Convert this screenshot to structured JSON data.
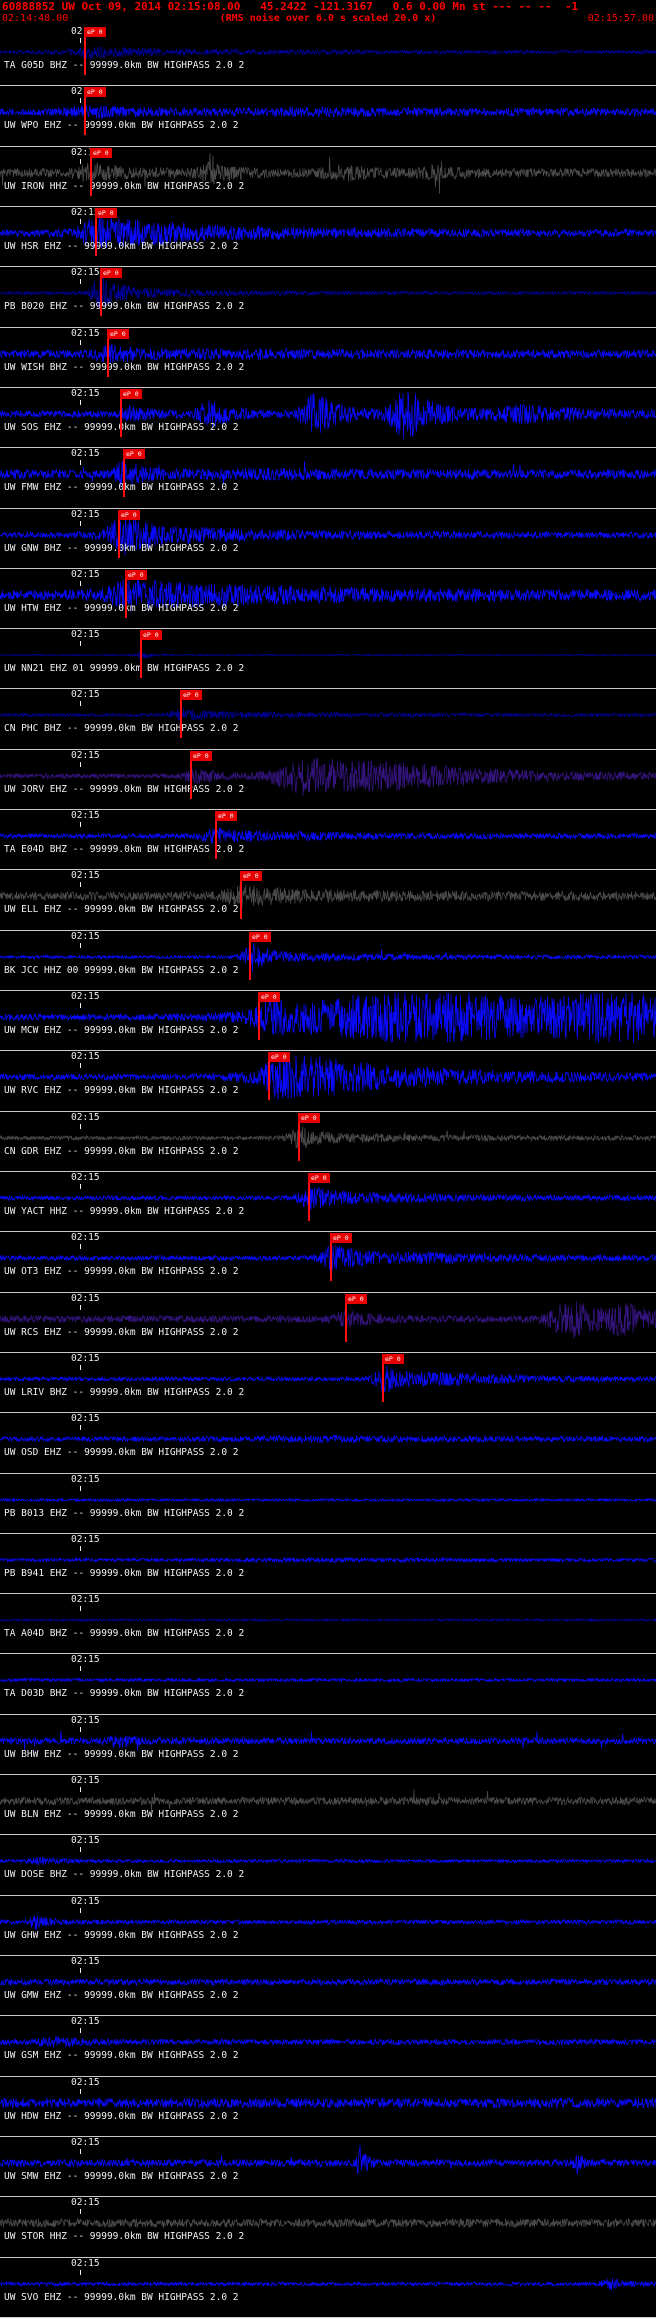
{
  "header": {
    "event_line": "60888852 UW Oct 09, 2014 02:15:08.00   45.2422 -121.3167   0.6 0.00 Mn st --- -- --  -1",
    "window_start": "02:14:48.00",
    "rms_note": "(RMS noise over 6.0 s scaled 20.0 x)",
    "window_end": "02:15:57.00"
  },
  "time_label": "02:15",
  "colors": {
    "background": "#000000",
    "header_text": "#ff0000",
    "label_text": "#f2f2f2",
    "separator": "#c9c9c9",
    "pick_red": "#ff0f0f",
    "blue": "#0a0aff",
    "navy": "#000096",
    "indigo": "#34147d",
    "dark": "#4b4b4b"
  },
  "traces": [
    {
      "label": "TA G05D BHZ -- 99999.0km BW HIGHPASS 2.0 2",
      "color": "navy",
      "noise": 1.8,
      "blobs": [
        {
          "p": 0.135,
          "w": 0.04,
          "a": 5
        },
        {
          "p": 0.22,
          "w": 0.2,
          "a": 2
        }
      ],
      "pick": {
        "pos": 0.128,
        "label": "eP 0"
      }
    },
    {
      "label": "UW WPO EHZ -- 99999.0km BW HIGHPASS 2.0 2",
      "color": "blue",
      "noise": 3.5,
      "blobs": [
        {
          "p": 0.14,
          "w": 0.07,
          "a": 4
        },
        {
          "p": 0.5,
          "w": 0.3,
          "a": 1.5
        }
      ],
      "pick": {
        "pos": 0.128,
        "label": "eP 0"
      }
    },
    {
      "label": "UW IRON HHZ -- 99999.0km BW HIGHPASS 2.0 2",
      "color": "dark",
      "noise": 4.5,
      "spikes": {
        "rate": 0.012,
        "amp": 2.8
      },
      "blobs": [
        {
          "p": 0.14,
          "w": 0.05,
          "a": 6
        },
        {
          "p": 0.32,
          "w": 0.03,
          "a": 9
        },
        {
          "p": 0.52,
          "w": 0.05,
          "a": 5
        },
        {
          "p": 0.66,
          "w": 0.03,
          "a": 4
        }
      ],
      "pick": {
        "pos": 0.137,
        "label": "eP 0"
      }
    },
    {
      "label": "UW HSR EHZ -- 99999.0km BW HIGHPASS 2.0 2",
      "color": "blue",
      "noise": 3.5,
      "blobs": [
        {
          "p": 0.15,
          "w": 0.05,
          "a": 13
        },
        {
          "p": 0.25,
          "w": 0.2,
          "a": 7
        }
      ],
      "pick": {
        "pos": 0.145,
        "label": "eP 0"
      }
    },
    {
      "label": "PB B020 EHZ -- 99999.0km BW HIGHPASS 2.0 2",
      "color": "navy",
      "noise": 1.4,
      "blobs": [
        {
          "p": 0.155,
          "w": 0.03,
          "a": 16
        },
        {
          "p": 0.25,
          "w": 0.2,
          "a": 2.5
        }
      ],
      "pick": {
        "pos": 0.152,
        "label": "eP 0"
      }
    },
    {
      "label": "UW WISH BHZ -- 99999.0km BW HIGHPASS 2.0 2",
      "color": "blue",
      "noise": 3.8,
      "blobs": [
        {
          "p": 0.17,
          "w": 0.05,
          "a": 6
        },
        {
          "p": 0.4,
          "w": 0.3,
          "a": 2
        }
      ],
      "pick": {
        "pos": 0.163,
        "label": "eP 0"
      }
    },
    {
      "label": "UW SOS EHZ -- 99999.0km BW HIGHPASS 2.0 2",
      "color": "blue",
      "noise": 3.5,
      "blobs": [
        {
          "p": 0.2,
          "w": 0.03,
          "a": 6
        },
        {
          "p": 0.32,
          "w": 0.035,
          "a": 12
        },
        {
          "p": 0.48,
          "w": 0.04,
          "a": 20
        },
        {
          "p": 0.62,
          "w": 0.05,
          "a": 22
        },
        {
          "p": 0.8,
          "w": 0.1,
          "a": 6
        }
      ],
      "pick": {
        "pos": 0.183,
        "label": "eP 0"
      }
    },
    {
      "label": "UW FMW EHZ -- 99999.0km BW HIGHPASS 2.0 2",
      "color": "blue",
      "noise": 4.5,
      "spikes": {
        "rate": 0.006,
        "amp": 2.5
      },
      "blobs": [
        {
          "p": 0.19,
          "w": 0.03,
          "a": 11
        },
        {
          "p": 0.4,
          "w": 0.2,
          "a": 2
        }
      ],
      "pick": {
        "pos": 0.187,
        "label": "eP 0"
      }
    },
    {
      "label": "UW GNW BHZ -- 99999.0km BW HIGHPASS 2.0 2",
      "color": "blue",
      "noise": 2.8,
      "blobs": [
        {
          "p": 0.19,
          "w": 0.05,
          "a": 17
        },
        {
          "p": 0.3,
          "w": 0.25,
          "a": 4
        }
      ],
      "pick": {
        "pos": 0.18,
        "label": "eP 0"
      }
    },
    {
      "label": "UW HTW EHZ -- 99999.0km BW HIGHPASS 2.0 2",
      "color": "blue",
      "noise": 4.5,
      "blobs": [
        {
          "p": 0.2,
          "w": 0.06,
          "a": 11
        },
        {
          "p": 0.35,
          "w": 0.35,
          "a": 6
        }
      ],
      "pick": {
        "pos": 0.19,
        "label": "eP 0"
      }
    },
    {
      "label": "UW NN21 EHZ 01 99999.0km BW HIGHPASS 2.0 2",
      "color": "navy",
      "noise": 0.7,
      "blobs": [
        {
          "p": 0.215,
          "w": 0.012,
          "a": 4
        }
      ],
      "pick": {
        "pos": 0.213,
        "label": "eP 0"
      }
    },
    {
      "label": "CN PHC BHZ -- 99999.0km BW HIGHPASS 2.0 2",
      "color": "navy",
      "noise": 1.5,
      "blobs": [
        {
          "p": 0.28,
          "w": 0.04,
          "a": 5
        },
        {
          "p": 0.4,
          "w": 0.2,
          "a": 1.5
        }
      ],
      "pick": {
        "pos": 0.274,
        "label": "eP 0"
      }
    },
    {
      "label": "UW JORV EHZ -- 99999.0km BW HIGHPASS 2.0 2",
      "color": "indigo",
      "noise": 2.5,
      "blobs": [
        {
          "p": 0.3,
          "w": 0.04,
          "a": 6
        },
        {
          "p": 0.47,
          "w": 0.1,
          "a": 18
        },
        {
          "p": 0.62,
          "w": 0.2,
          "a": 8
        }
      ],
      "pick": {
        "pos": 0.29,
        "label": "eP 0"
      }
    },
    {
      "label": "TA E04D BHZ -- 99999.0km BW HIGHPASS 2.0 2",
      "color": "blue",
      "noise": 2.2,
      "blobs": [
        {
          "p": 0.33,
          "w": 0.05,
          "a": 6
        },
        {
          "p": 0.45,
          "w": 0.25,
          "a": 2
        }
      ],
      "pick": {
        "pos": 0.328,
        "label": "eP 0"
      }
    },
    {
      "label": "UW ELL EHZ -- 99999.0km BW HIGHPASS 2.0 2",
      "color": "dark",
      "noise": 4.2,
      "blobs": [
        {
          "p": 0.37,
          "w": 0.05,
          "a": 8
        },
        {
          "p": 0.5,
          "w": 0.25,
          "a": 2
        }
      ],
      "pick": {
        "pos": 0.366,
        "label": "eP 0"
      }
    },
    {
      "label": "BK JCC HHZ 00 99999.0km BW HIGHPASS 2.0 2",
      "color": "blue",
      "noise": 1.6,
      "spikes": {
        "rate": 0.005,
        "amp": 2.5
      },
      "blobs": [
        {
          "p": 0.385,
          "w": 0.03,
          "a": 13
        },
        {
          "p": 0.5,
          "w": 0.2,
          "a": 2.5
        }
      ],
      "pick": {
        "pos": 0.38,
        "label": "eP 0"
      }
    },
    {
      "label": "UW MCW EHZ -- 99999.0km BW HIGHPASS 2.0 2",
      "color": "blue",
      "noise": 3.2,
      "blobs": [
        {
          "p": 0.42,
          "w": 0.06,
          "a": 10
        },
        {
          "p": 0.66,
          "w": 0.4,
          "a": 25
        },
        {
          "p": 0.98,
          "w": 0.2,
          "a": 15
        }
      ],
      "pick": {
        "pos": 0.393,
        "label": "eP 0"
      }
    },
    {
      "label": "UW RVC EHZ -- 99999.0km BW HIGHPASS 2.0 2",
      "color": "blue",
      "noise": 3.0,
      "blobs": [
        {
          "p": 0.43,
          "w": 0.05,
          "a": 14
        },
        {
          "p": 0.5,
          "w": 0.2,
          "a": 14
        }
      ],
      "pick": {
        "pos": 0.409,
        "label": "eP 0"
      }
    },
    {
      "label": "CN GDR EHZ -- 99999.0km BW HIGHPASS 2.0 2",
      "color": "dark",
      "noise": 2.0,
      "spikes": {
        "rate": 0.006,
        "amp": 2.5
      },
      "blobs": [
        {
          "p": 0.46,
          "w": 0.04,
          "a": 9
        },
        {
          "p": 0.6,
          "w": 0.25,
          "a": 2
        }
      ],
      "pick": {
        "pos": 0.454,
        "label": "eP 0"
      }
    },
    {
      "label": "UW YACT HHZ -- 99999.0km BW HIGHPASS 2.0 2",
      "color": "blue",
      "noise": 2.2,
      "blobs": [
        {
          "p": 0.475,
          "w": 0.04,
          "a": 10
        },
        {
          "p": 0.6,
          "w": 0.2,
          "a": 3
        }
      ],
      "pick": {
        "pos": 0.47,
        "label": "eP 0"
      }
    },
    {
      "label": "UW OT3 EHZ -- 99999.0km BW HIGHPASS 2.0 2",
      "color": "blue",
      "noise": 2.4,
      "blobs": [
        {
          "p": 0.51,
          "w": 0.04,
          "a": 12
        },
        {
          "p": 0.65,
          "w": 0.2,
          "a": 3.5
        }
      ],
      "pick": {
        "pos": 0.503,
        "label": "eP 0"
      }
    },
    {
      "label": "UW RCS EHZ -- 99999.0km BW HIGHPASS 2.0 2",
      "color": "indigo",
      "noise": 3.5,
      "blobs": [
        {
          "p": 0.53,
          "w": 0.04,
          "a": 6
        },
        {
          "p": 0.87,
          "w": 0.06,
          "a": 17
        },
        {
          "p": 0.95,
          "w": 0.05,
          "a": 10
        }
      ],
      "pick": {
        "pos": 0.526,
        "label": "eP 0"
      }
    },
    {
      "label": "UW LRIV BHZ -- 99999.0km BW HIGHPASS 2.0 2",
      "color": "blue",
      "noise": 2.0,
      "blobs": [
        {
          "p": 0.59,
          "w": 0.04,
          "a": 12
        },
        {
          "p": 0.7,
          "w": 0.15,
          "a": 4
        }
      ],
      "pick": {
        "pos": 0.582,
        "label": "eP 0"
      }
    },
    {
      "label": "UW OSD EHZ -- 99999.0km BW HIGHPASS 2.0 2",
      "color": "blue",
      "noise": 2.4,
      "blobs": [
        {
          "p": 0.5,
          "w": 0.3,
          "a": 1.5
        }
      ],
      "pick": null
    },
    {
      "label": "PB B013 EHZ -- 99999.0km BW HIGHPASS 2.0 2",
      "color": "blue",
      "noise": 1.2,
      "blobs": [],
      "pick": null
    },
    {
      "label": "PB B941 EHZ -- 99999.0km BW HIGHPASS 2.0 2",
      "color": "blue",
      "noise": 1.6,
      "blobs": [
        {
          "p": 0.5,
          "w": 0.4,
          "a": 0.8
        }
      ],
      "pick": null
    },
    {
      "label": "TA A04D BHZ -- 99999.0km BW HIGHPASS 2.0 2",
      "color": "navy",
      "noise": 1.2,
      "blobs": [],
      "pick": null
    },
    {
      "label": "TA D03D BHZ -- 99999.0km BW HIGHPASS 2.0 2",
      "color": "blue",
      "noise": 1.6,
      "blobs": [],
      "pick": null
    },
    {
      "label": "UW BHW EHZ -- 99999.0km BW HIGHPASS 2.0 2",
      "color": "blue",
      "noise": 3.2,
      "spikes": {
        "rate": 0.008,
        "amp": 3.2
      },
      "blobs": [
        {
          "p": 0.18,
          "w": 0.02,
          "a": 6
        }
      ],
      "pick": null
    },
    {
      "label": "UW BLN EHZ -- 99999.0km BW HIGHPASS 2.0 2",
      "color": "dark",
      "noise": 3.8,
      "spikes": {
        "rate": 0.012,
        "amp": 3.4
      },
      "blobs": [],
      "pick": null
    },
    {
      "label": "UW DOSE BHZ -- 99999.0km BW HIGHPASS 2.0 2",
      "color": "blue",
      "noise": 1.6,
      "blobs": [
        {
          "p": 0.06,
          "w": 0.03,
          "a": 3
        }
      ],
      "pick": null
    },
    {
      "label": "UW GHW EHZ -- 99999.0km BW HIGHPASS 2.0 2",
      "color": "blue",
      "noise": 2.2,
      "spikes": {
        "rate": 0.003,
        "amp": 2.0
      },
      "blobs": [
        {
          "p": 0.055,
          "w": 0.02,
          "a": 6
        }
      ],
      "pick": null
    },
    {
      "label": "UW GMW EHZ -- 99999.0km BW HIGHPASS 2.0 2",
      "color": "blue",
      "noise": 3.0,
      "blobs": [],
      "pick": null
    },
    {
      "label": "UW GSM EHZ -- 99999.0km BW HIGHPASS 2.0 2",
      "color": "blue",
      "noise": 2.8,
      "blobs": [
        {
          "p": 0.08,
          "w": 0.04,
          "a": 4
        }
      ],
      "pick": null
    },
    {
      "label": "UW HDW EHZ -- 99999.0km BW HIGHPASS 2.0 2",
      "color": "blue",
      "noise": 4.8,
      "blobs": [],
      "pick": null
    },
    {
      "label": "UW SMW EHZ -- 99999.0km BW HIGHPASS 2.0 2",
      "color": "blue",
      "noise": 3.6,
      "spikes": {
        "rate": 0.004,
        "amp": 2.5
      },
      "blobs": [
        {
          "p": 0.55,
          "w": 0.008,
          "a": 16
        },
        {
          "p": 0.88,
          "w": 0.01,
          "a": 8
        }
      ],
      "pick": null
    },
    {
      "label": "UW STOR HHZ -- 99999.0km BW HIGHPASS 2.0 2",
      "color": "dark",
      "noise": 4.2,
      "blobs": [],
      "pick": null
    },
    {
      "label": "UW SVO EHZ -- 99999.0km BW HIGHPASS 2.0 2",
      "color": "blue",
      "noise": 1.8,
      "blobs": [
        {
          "p": 0.93,
          "w": 0.025,
          "a": 5
        }
      ],
      "pick": null
    }
  ]
}
